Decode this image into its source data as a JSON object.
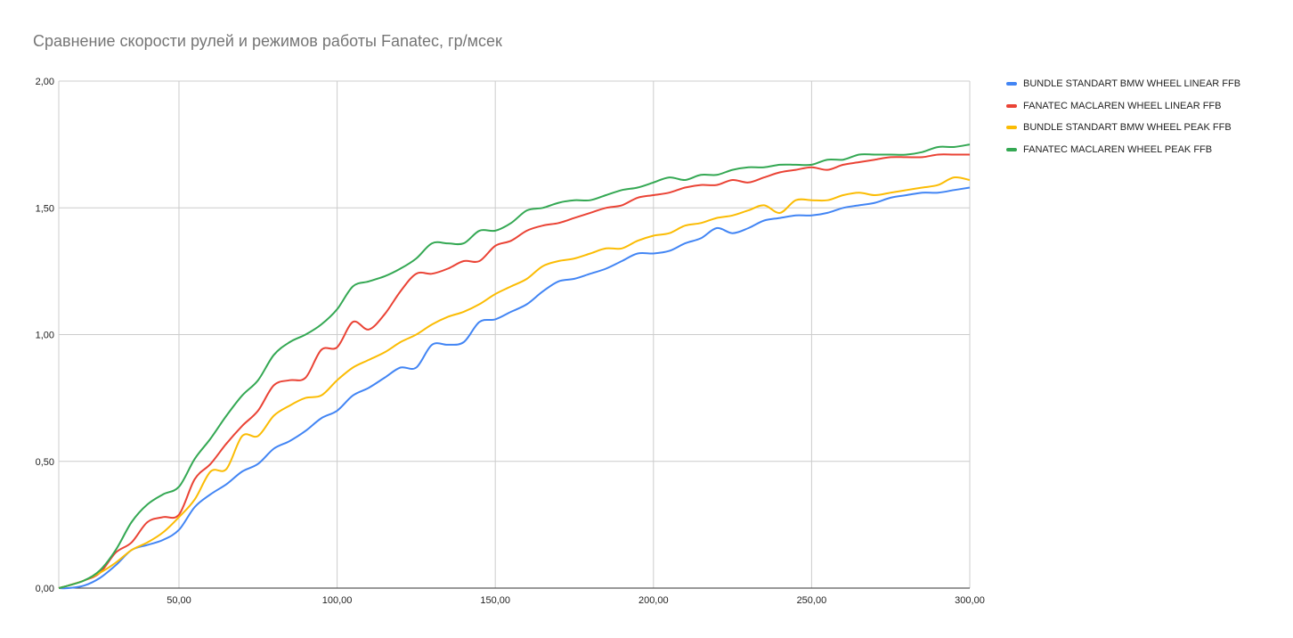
{
  "chart_data": {
    "type": "line",
    "title": "Сравнение скорости рулей и режимов работы Fanatec, гр/мсек",
    "xlabel": "",
    "ylabel": "",
    "xlim": [
      12,
      300
    ],
    "ylim": [
      0,
      2
    ],
    "x_ticks": [
      {
        "value": 50,
        "label": "50,00"
      },
      {
        "value": 100,
        "label": "100,00"
      },
      {
        "value": 150,
        "label": "150,00"
      },
      {
        "value": 200,
        "label": "200,00"
      },
      {
        "value": 250,
        "label": "250,00"
      },
      {
        "value": 300,
        "label": "300,00"
      }
    ],
    "y_ticks": [
      {
        "value": 0,
        "label": "0,00"
      },
      {
        "value": 0.5,
        "label": "0,50"
      },
      {
        "value": 1,
        "label": "1,00"
      },
      {
        "value": 1.5,
        "label": "1,50"
      },
      {
        "value": 2,
        "label": "2,00"
      }
    ],
    "grid": true,
    "legend_position": "right",
    "x": [
      12,
      15,
      20,
      25,
      30,
      35,
      40,
      45,
      50,
      55,
      60,
      65,
      70,
      75,
      80,
      85,
      90,
      95,
      100,
      105,
      110,
      115,
      120,
      125,
      130,
      135,
      140,
      145,
      150,
      155,
      160,
      165,
      170,
      175,
      180,
      185,
      190,
      195,
      200,
      205,
      210,
      215,
      220,
      225,
      230,
      235,
      240,
      245,
      250,
      255,
      260,
      265,
      270,
      275,
      280,
      285,
      290,
      295,
      300
    ],
    "series": [
      {
        "name": "BUNDLE STANDART BMW WHEEL LINEAR FFB",
        "color": "#4285f4",
        "values": [
          0,
          0,
          0.01,
          0.04,
          0.09,
          0.15,
          0.17,
          0.19,
          0.23,
          0.32,
          0.37,
          0.41,
          0.46,
          0.49,
          0.55,
          0.58,
          0.62,
          0.67,
          0.7,
          0.76,
          0.79,
          0.83,
          0.87,
          0.87,
          0.96,
          0.96,
          0.97,
          1.05,
          1.06,
          1.09,
          1.12,
          1.17,
          1.21,
          1.22,
          1.24,
          1.26,
          1.29,
          1.32,
          1.32,
          1.33,
          1.36,
          1.38,
          1.42,
          1.4,
          1.42,
          1.45,
          1.46,
          1.47,
          1.47,
          1.48,
          1.5,
          1.51,
          1.52,
          1.54,
          1.55,
          1.56,
          1.56,
          1.57,
          1.58
        ]
      },
      {
        "name": "FANATEC MACLAREN WHEEL LINEAR FFB",
        "color": "#ea4335",
        "values": [
          0,
          0.01,
          0.03,
          0.06,
          0.14,
          0.18,
          0.26,
          0.28,
          0.29,
          0.43,
          0.49,
          0.57,
          0.64,
          0.7,
          0.8,
          0.82,
          0.83,
          0.94,
          0.95,
          1.05,
          1.02,
          1.08,
          1.17,
          1.24,
          1.24,
          1.26,
          1.29,
          1.29,
          1.35,
          1.37,
          1.41,
          1.43,
          1.44,
          1.46,
          1.48,
          1.5,
          1.51,
          1.54,
          1.55,
          1.56,
          1.58,
          1.59,
          1.59,
          1.61,
          1.6,
          1.62,
          1.64,
          1.65,
          1.66,
          1.65,
          1.67,
          1.68,
          1.69,
          1.7,
          1.7,
          1.7,
          1.71,
          1.71,
          1.71
        ]
      },
      {
        "name": "BUNDLE STANDART BMW WHEEL PEAK FFB",
        "color": "#fbbc04",
        "values": [
          0,
          0.01,
          0.03,
          0.06,
          0.1,
          0.15,
          0.18,
          0.22,
          0.28,
          0.35,
          0.46,
          0.47,
          0.6,
          0.6,
          0.68,
          0.72,
          0.75,
          0.76,
          0.82,
          0.87,
          0.9,
          0.93,
          0.97,
          1.0,
          1.04,
          1.07,
          1.09,
          1.12,
          1.16,
          1.19,
          1.22,
          1.27,
          1.29,
          1.3,
          1.32,
          1.34,
          1.34,
          1.37,
          1.39,
          1.4,
          1.43,
          1.44,
          1.46,
          1.47,
          1.49,
          1.51,
          1.48,
          1.53,
          1.53,
          1.53,
          1.55,
          1.56,
          1.55,
          1.56,
          1.57,
          1.58,
          1.59,
          1.62,
          1.61
        ]
      },
      {
        "name": "FANATEC MACLAREN WHEEL PEAK FFB",
        "color": "#34a853",
        "values": [
          0,
          0.01,
          0.03,
          0.07,
          0.15,
          0.26,
          0.33,
          0.37,
          0.4,
          0.51,
          0.59,
          0.68,
          0.76,
          0.82,
          0.92,
          0.97,
          1.0,
          1.04,
          1.1,
          1.19,
          1.21,
          1.23,
          1.26,
          1.3,
          1.36,
          1.36,
          1.36,
          1.41,
          1.41,
          1.44,
          1.49,
          1.5,
          1.52,
          1.53,
          1.53,
          1.55,
          1.57,
          1.58,
          1.6,
          1.62,
          1.61,
          1.63,
          1.63,
          1.65,
          1.66,
          1.66,
          1.67,
          1.67,
          1.67,
          1.69,
          1.69,
          1.71,
          1.71,
          1.71,
          1.71,
          1.72,
          1.74,
          1.74,
          1.75
        ]
      }
    ]
  }
}
